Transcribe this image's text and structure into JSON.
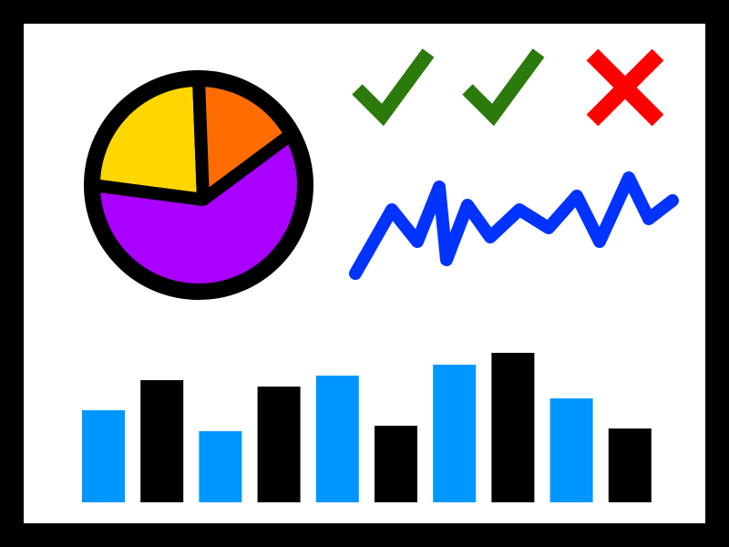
{
  "colors": {
    "frame": "#000000",
    "background": "#ffffff",
    "pie_yellow": "#ffd700",
    "pie_orange": "#ff6d00",
    "pie_purple": "#aa00ff",
    "check_green": "#2b7a0b",
    "cross_red": "#ff0000",
    "line_blue": "#0033ff",
    "bar_light_blue": "#0096ff",
    "bar_black": "#000000"
  },
  "icons": [
    "check-icon",
    "check-icon",
    "cross-icon"
  ],
  "chart_data": [
    {
      "type": "pie",
      "slices": [
        {
          "color": "#ffd700",
          "fraction": 0.25
        },
        {
          "color": "#ff6d00",
          "fraction": 0.17
        },
        {
          "color": "#aa00ff",
          "fraction": 0.58
        }
      ]
    },
    {
      "type": "line",
      "values": [
        0,
        70,
        35,
        95,
        15,
        75,
        40,
        70,
        50,
        85,
        35,
        105,
        60,
        80
      ]
    },
    {
      "type": "bar",
      "values": [
        101,
        134,
        78,
        127,
        139,
        84,
        151,
        164,
        114,
        81
      ],
      "colors": [
        "#0096ff",
        "#000000",
        "#0096ff",
        "#000000",
        "#0096ff",
        "#000000",
        "#0096ff",
        "#000000",
        "#0096ff",
        "#000000"
      ]
    }
  ]
}
